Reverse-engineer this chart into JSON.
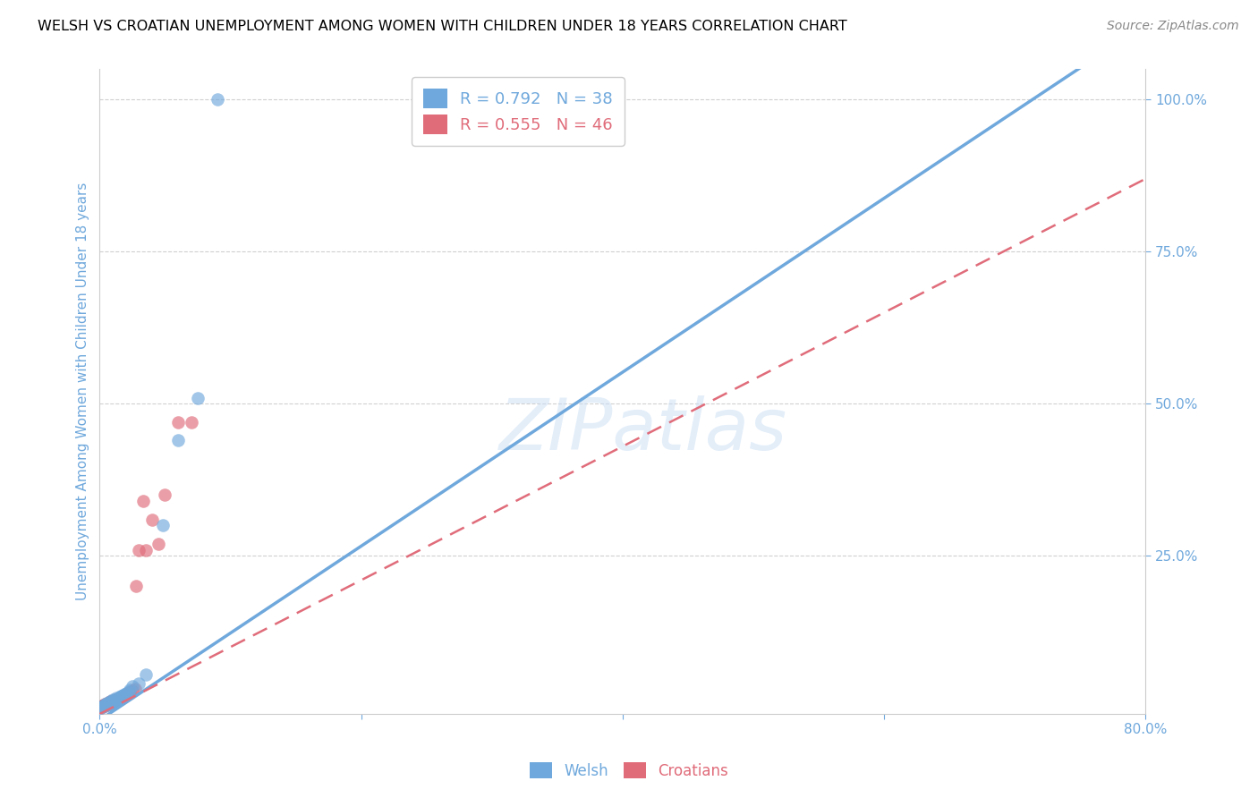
{
  "title": "WELSH VS CROATIAN UNEMPLOYMENT AMONG WOMEN WITH CHILDREN UNDER 18 YEARS CORRELATION CHART",
  "source": "Source: ZipAtlas.com",
  "ylabel": "Unemployment Among Women with Children Under 18 years",
  "xlim": [
    0,
    0.8
  ],
  "ylim": [
    -0.01,
    1.05
  ],
  "xtick_vals": [
    0.0,
    0.2,
    0.4,
    0.6,
    0.8
  ],
  "xtick_labels": [
    "0.0%",
    "",
    "",
    "",
    "80.0%"
  ],
  "ytick_vals": [
    0.25,
    0.5,
    0.75,
    1.0
  ],
  "ytick_labels": [
    "25.0%",
    "50.0%",
    "75.0%",
    "100.0%"
  ],
  "welsh_color": "#6fa8dc",
  "croatian_color": "#e06c7a",
  "welsh_R": 0.792,
  "welsh_N": 38,
  "croatian_R": 0.555,
  "croatian_N": 46,
  "welsh_line_slope": 1.43,
  "welsh_line_intercept": -0.02,
  "croatian_line_slope": 1.1,
  "croatian_line_intercept": -0.01,
  "welsh_scatter_x": [
    0.001,
    0.002,
    0.003,
    0.003,
    0.004,
    0.005,
    0.005,
    0.006,
    0.006,
    0.007,
    0.007,
    0.008,
    0.008,
    0.009,
    0.009,
    0.01,
    0.01,
    0.011,
    0.012,
    0.013,
    0.013,
    0.014,
    0.015,
    0.016,
    0.016,
    0.017,
    0.018,
    0.019,
    0.02,
    0.022,
    0.023,
    0.025,
    0.03,
    0.035,
    0.048,
    0.06,
    0.075,
    0.09
  ],
  "welsh_scatter_y": [
    0.001,
    0.002,
    0.003,
    0.005,
    0.004,
    0.006,
    0.008,
    0.005,
    0.007,
    0.006,
    0.009,
    0.007,
    0.01,
    0.008,
    0.011,
    0.009,
    0.013,
    0.012,
    0.014,
    0.013,
    0.016,
    0.015,
    0.017,
    0.018,
    0.02,
    0.019,
    0.021,
    0.022,
    0.024,
    0.027,
    0.03,
    0.035,
    0.04,
    0.055,
    0.3,
    0.44,
    0.51,
    1.0
  ],
  "croatian_scatter_x": [
    0.001,
    0.001,
    0.002,
    0.002,
    0.003,
    0.003,
    0.004,
    0.004,
    0.005,
    0.005,
    0.006,
    0.006,
    0.007,
    0.007,
    0.008,
    0.008,
    0.009,
    0.009,
    0.01,
    0.01,
    0.011,
    0.012,
    0.012,
    0.013,
    0.014,
    0.015,
    0.015,
    0.016,
    0.017,
    0.018,
    0.019,
    0.02,
    0.021,
    0.022,
    0.023,
    0.025,
    0.027,
    0.028,
    0.03,
    0.033,
    0.035,
    0.04,
    0.045,
    0.05,
    0.06,
    0.07
  ],
  "croatian_scatter_y": [
    0.001,
    0.002,
    0.003,
    0.004,
    0.003,
    0.005,
    0.004,
    0.006,
    0.005,
    0.007,
    0.006,
    0.008,
    0.007,
    0.009,
    0.007,
    0.01,
    0.008,
    0.011,
    0.009,
    0.012,
    0.011,
    0.012,
    0.014,
    0.013,
    0.015,
    0.014,
    0.016,
    0.017,
    0.018,
    0.019,
    0.02,
    0.022,
    0.023,
    0.025,
    0.026,
    0.028,
    0.032,
    0.2,
    0.26,
    0.34,
    0.26,
    0.31,
    0.27,
    0.35,
    0.47,
    0.47
  ],
  "background_color": "#ffffff",
  "grid_color": "#d0d0d0",
  "title_color": "#000000",
  "axis_label_color": "#6fa8dc",
  "tick_color": "#6fa8dc"
}
